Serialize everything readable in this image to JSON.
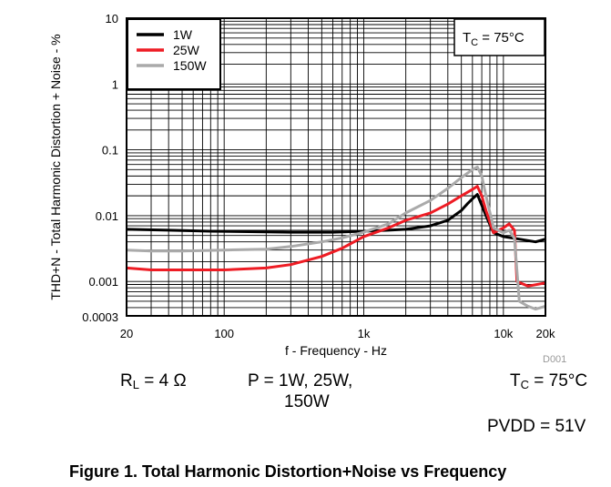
{
  "chart_data": {
    "type": "line",
    "xlabel": "f - Frequency - Hz",
    "ylabel": "THD+N - Total Harmonic Distortion + Noise - %",
    "x_scale": "log",
    "y_scale": "log",
    "xlim": [
      20,
      20000
    ],
    "ylim": [
      0.0003,
      10
    ],
    "x_ticks": [
      {
        "value": 20,
        "label": "20"
      },
      {
        "value": 100,
        "label": "100"
      },
      {
        "value": 1000,
        "label": "1k"
      },
      {
        "value": 10000,
        "label": "10k"
      },
      {
        "value": 20000,
        "label": "20k"
      }
    ],
    "y_ticks": [
      {
        "value": 10,
        "label": "10"
      },
      {
        "value": 1,
        "label": "1"
      },
      {
        "value": 0.1,
        "label": "0.1"
      },
      {
        "value": 0.01,
        "label": "0.01"
      },
      {
        "value": 0.001,
        "label": "0.001"
      },
      {
        "value": 0.0003,
        "label": "0.0003"
      }
    ],
    "grid": true,
    "legend_position": "top-left",
    "annotation": {
      "main": "T",
      "sub": "C",
      "rest": " = 75°C"
    },
    "series": [
      {
        "name": "1W",
        "color": "#000000",
        "x": [
          20,
          40,
          80,
          150,
          300,
          600,
          1000,
          1500,
          2000,
          3000,
          4000,
          5000,
          5500,
          6000,
          6500,
          7500,
          8500,
          10000,
          13000,
          17000,
          20000
        ],
        "y": [
          0.0062,
          0.006,
          0.0058,
          0.0057,
          0.0056,
          0.0056,
          0.0058,
          0.006,
          0.0062,
          0.007,
          0.0085,
          0.012,
          0.015,
          0.018,
          0.021,
          0.01,
          0.0055,
          0.0048,
          0.0044,
          0.004,
          0.0044
        ]
      },
      {
        "name": "25W",
        "color": "#ee1c24",
        "x": [
          20,
          30,
          50,
          100,
          200,
          300,
          500,
          700,
          1000,
          1500,
          2000,
          3000,
          4000,
          5000,
          6000,
          6500,
          7000,
          7500,
          8500,
          10000,
          11000,
          12000,
          12500,
          15000,
          20000
        ],
        "y": [
          0.0016,
          0.0015,
          0.0015,
          0.0015,
          0.0016,
          0.0018,
          0.0024,
          0.0032,
          0.0048,
          0.0065,
          0.0085,
          0.011,
          0.015,
          0.02,
          0.025,
          0.028,
          0.02,
          0.012,
          0.0055,
          0.0065,
          0.0075,
          0.006,
          0.001,
          0.00085,
          0.00095
        ]
      },
      {
        "name": "150W",
        "color": "#aaaaaa",
        "x": [
          20,
          30,
          50,
          100,
          200,
          300,
          500,
          700,
          1000,
          1500,
          2000,
          3000,
          4000,
          5000,
          6000,
          6500,
          7000,
          7500,
          8500,
          10000,
          11000,
          12000,
          13000,
          15000,
          17000,
          20000
        ],
        "y": [
          0.003,
          0.0029,
          0.0029,
          0.003,
          0.0031,
          0.0034,
          0.004,
          0.0046,
          0.0056,
          0.0075,
          0.011,
          0.017,
          0.026,
          0.038,
          0.05,
          0.055,
          0.04,
          0.02,
          0.0065,
          0.0055,
          0.006,
          0.0045,
          0.0005,
          0.00042,
          0.00038,
          0.00042
        ]
      }
    ]
  },
  "notes": {
    "rl_main": "R",
    "rl_sub": "L",
    "rl_rest": " = 4 Ω",
    "power_line1": "P = 1W, 25W,",
    "power_line2": "150W",
    "tc_main": "T",
    "tc_sub": "C",
    "tc_rest": " = 75°C",
    "pvdd": "PVDD = 51V",
    "figure_code": "D001",
    "caption": "Figure 1. Total Harmonic Distortion+Noise vs Frequency"
  }
}
